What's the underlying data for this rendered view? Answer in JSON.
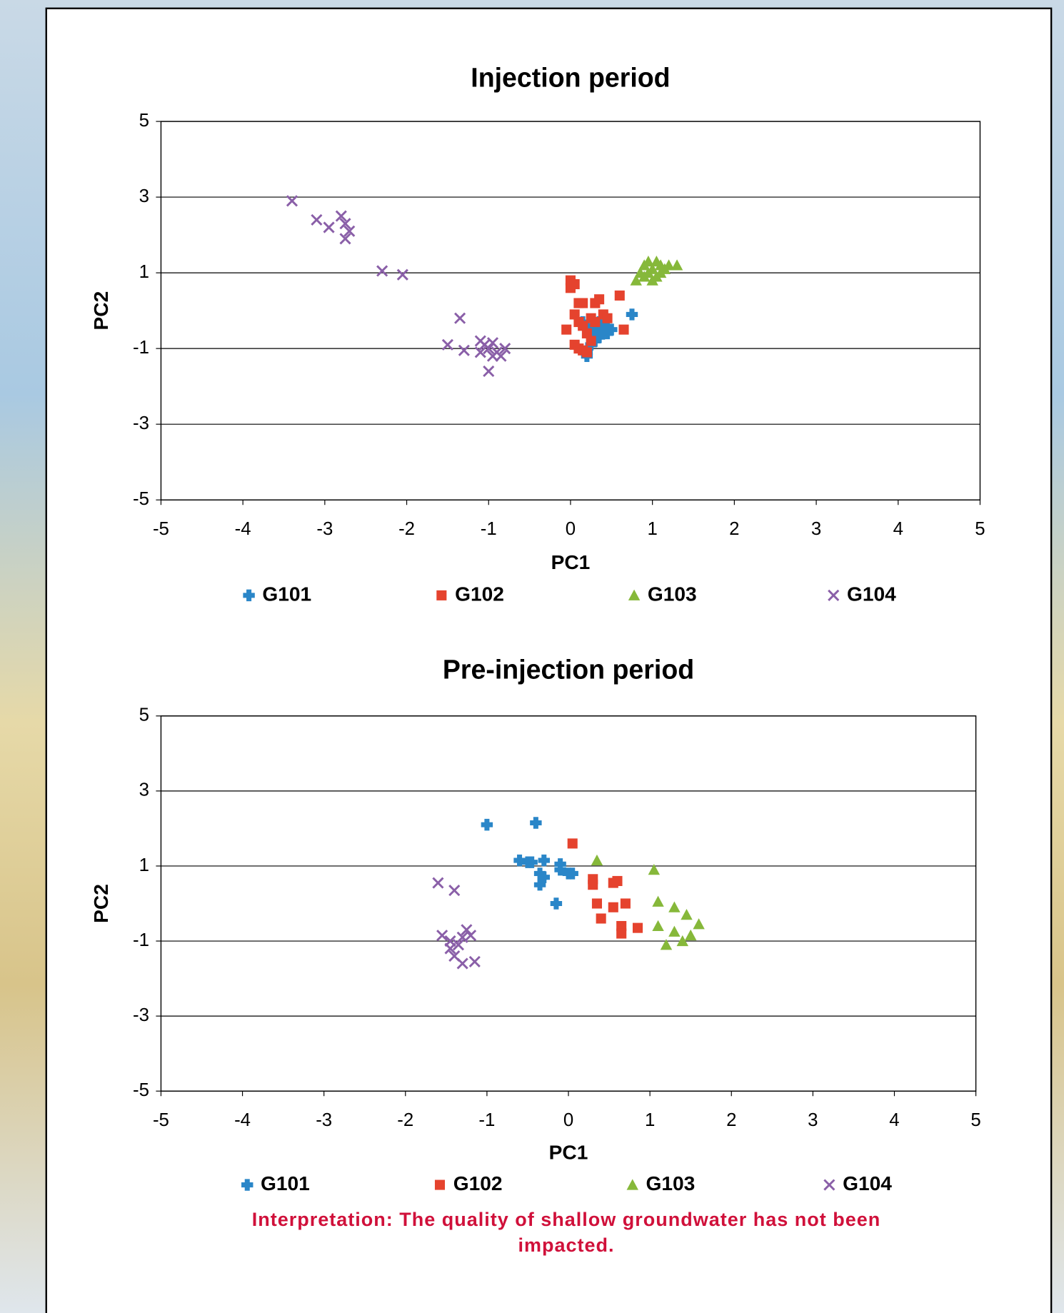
{
  "chart_data": [
    {
      "type": "scatter",
      "title": "Injection period",
      "xlabel": "PC1",
      "ylabel": "PC2",
      "xlim": [
        -5,
        5
      ],
      "ylim": [
        -5,
        5
      ],
      "xticks": [
        -5,
        -4,
        -3,
        -2,
        -1,
        0,
        1,
        2,
        3,
        4,
        5
      ],
      "yticks": [
        -5,
        -3,
        -1,
        1,
        3,
        5
      ],
      "grid": true,
      "series": [
        {
          "name": "G101",
          "color": "#2a86c8",
          "marker": "plus",
          "x": [
            0.2,
            0.25,
            0.3,
            0.35,
            0.4,
            0.45,
            0.5,
            0.3,
            0.25,
            0.2,
            0.2,
            0.35,
            0.4,
            0.75,
            0.15,
            0.3,
            0.45,
            0.38
          ],
          "y": [
            -0.4,
            -0.6,
            -0.5,
            -0.3,
            -0.4,
            -0.6,
            -0.5,
            -0.8,
            -0.9,
            -1.1,
            -1.2,
            -0.7,
            -0.5,
            -0.1,
            -0.3,
            -0.6,
            -0.45,
            -0.55
          ]
        },
        {
          "name": "G102",
          "color": "#e5432e",
          "marker": "square",
          "x": [
            0,
            0,
            0.05,
            0.1,
            0.15,
            0.05,
            0.3,
            0.35,
            0.6,
            0.1,
            -0.05,
            0.15,
            0.25,
            0.4,
            0.45,
            0.2,
            0.25,
            0.05,
            0.1,
            0.15,
            0.2,
            0.65,
            0.3
          ],
          "y": [
            0.8,
            0.6,
            0.7,
            0.2,
            0.2,
            -0.1,
            0.2,
            0.3,
            0.4,
            -0.3,
            -0.5,
            -0.4,
            -0.2,
            -0.1,
            -0.2,
            -0.6,
            -0.8,
            -0.9,
            -1,
            -1.05,
            -1.1,
            -0.5,
            -0.3
          ]
        },
        {
          "name": "G103",
          "color": "#86b83a",
          "marker": "triangle",
          "x": [
            0.8,
            0.85,
            0.9,
            0.95,
            1.0,
            1.05,
            1.1,
            1.15,
            1.2,
            1.3,
            0.9,
            1.0,
            1.05,
            0.95,
            1.1
          ],
          "y": [
            0.8,
            1.0,
            1.2,
            1.3,
            1.1,
            1.3,
            1.2,
            1.1,
            1.2,
            1.2,
            0.9,
            0.8,
            0.9,
            1.0,
            1.0
          ]
        },
        {
          "name": "G104",
          "color": "#8a5fa8",
          "marker": "x",
          "x": [
            -3.4,
            -3.1,
            -2.95,
            -2.8,
            -2.75,
            -2.7,
            -2.75,
            -2.3,
            -2.05,
            -1.5,
            -1.35,
            -1.3,
            -1.1,
            -1.05,
            -1.0,
            -0.95,
            -1.0,
            -0.9,
            -0.8,
            -0.85,
            -1.1,
            -0.95
          ],
          "y": [
            2.9,
            2.4,
            2.2,
            2.5,
            2.3,
            2.1,
            1.9,
            1.05,
            0.95,
            -0.9,
            -0.2,
            -1.05,
            -0.8,
            -0.9,
            -1.0,
            -1.2,
            -1.6,
            -1.1,
            -1.0,
            -1.2,
            -1.1,
            -0.85
          ]
        }
      ]
    },
    {
      "type": "scatter",
      "title": "Pre-injection period",
      "xlabel": "PC1",
      "ylabel": "PC2",
      "xlim": [
        -5,
        5
      ],
      "ylim": [
        -5,
        5
      ],
      "xticks": [
        -5,
        -4,
        -3,
        -2,
        -1,
        0,
        1,
        2,
        3,
        4,
        5
      ],
      "yticks": [
        -5,
        -3,
        -1,
        1,
        3,
        5
      ],
      "grid": true,
      "series": [
        {
          "name": "G101",
          "color": "#2a86c8",
          "marker": "plus",
          "x": [
            -1,
            -0.4,
            -0.6,
            -0.5,
            -0.3,
            -0.35,
            -0.3,
            -0.35,
            -0.15,
            -0.1,
            -0.1,
            0,
            0.05,
            -0.45
          ],
          "y": [
            2.1,
            2.15,
            1.15,
            1.1,
            1.15,
            0.8,
            0.7,
            0.5,
            0,
            1.05,
            0.9,
            0.8,
            0.8,
            1.1
          ]
        },
        {
          "name": "G102",
          "color": "#e5432e",
          "marker": "square",
          "x": [
            0.05,
            0.3,
            0.3,
            0.6,
            0.55,
            0.35,
            0.7,
            0.55,
            0.4,
            0.65,
            0.65,
            0.85
          ],
          "y": [
            1.6,
            0.65,
            0.5,
            0.6,
            0.55,
            0,
            0,
            -0.1,
            -0.4,
            -0.6,
            -0.8,
            -0.65
          ]
        },
        {
          "name": "G103",
          "color": "#86b83a",
          "marker": "triangle",
          "x": [
            0.35,
            1.05,
            1.1,
            1.1,
            1.3,
            1.3,
            1.45,
            1.6,
            1.5,
            1.4,
            1.2
          ],
          "y": [
            1.15,
            0.9,
            0.05,
            -0.6,
            -0.1,
            -0.75,
            -0.3,
            -0.55,
            -0.85,
            -1.0,
            -1.1
          ]
        },
        {
          "name": "G104",
          "color": "#8a5fa8",
          "marker": "x",
          "x": [
            -1.6,
            -1.4,
            -1.55,
            -1.45,
            -1.3,
            -1.25,
            -1.35,
            -1.4,
            -1.3,
            -1.15,
            -1.45,
            -1.2
          ],
          "y": [
            0.55,
            0.35,
            -0.85,
            -1.0,
            -0.9,
            -0.7,
            -1.1,
            -1.4,
            -1.6,
            -1.55,
            -1.2,
            -0.85
          ]
        }
      ]
    }
  ],
  "annotation": "Interpretation: The quality of shallow groundwater has not been impacted."
}
